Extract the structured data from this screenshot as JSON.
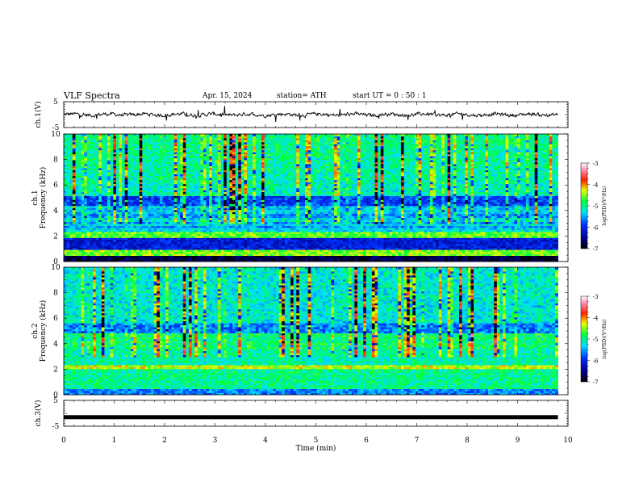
{
  "header": {
    "title": "VLF  Spectra",
    "date": "Apr. 15, 2024",
    "station": "station= ATH",
    "start_ut": "start  UT  =    0  : 50 : 1"
  },
  "chart_data": [
    {
      "type": "line",
      "ylabel": "ch.1(V)",
      "ylim": [
        -5,
        5
      ],
      "y_ticks": [
        "5",
        "-5"
      ],
      "description_series": "noisy waveform centered near 0 V, occasional spikes",
      "xlim": [
        0,
        10
      ],
      "data_end_min": 9.8
    },
    {
      "type": "heatmap",
      "ylabel": "ch.1\nFrequency  (kHz)",
      "ylim": [
        0,
        10
      ],
      "y_ticks": [
        "0",
        "2",
        "4",
        "6",
        "8",
        "10"
      ],
      "colorbar": {
        "label": "log(PSD)(V²/Hz)",
        "ticks": [
          "-3",
          "-4",
          "-5",
          "-6",
          "-7"
        ],
        "range": [
          -7,
          -3
        ]
      }
    },
    {
      "type": "heatmap",
      "ylabel": "ch.2\nFrequency  (kHz)",
      "ylim": [
        0,
        10
      ],
      "y_ticks": [
        "0",
        "2",
        "4",
        "6",
        "8",
        "10"
      ],
      "colorbar": {
        "label": "log(PSD)(V²/Hz)",
        "ticks": [
          "-3",
          "-4",
          "-5",
          "-6",
          "-7"
        ],
        "range": [
          -7,
          -3
        ]
      }
    },
    {
      "type": "line",
      "ylabel": "ch.3(V)",
      "ylim": [
        -5,
        5
      ],
      "y_ticks": [
        "5",
        "-5"
      ],
      "flat_value": -1.5,
      "xlim": [
        0,
        10
      ],
      "data_end_min": 9.8
    }
  ],
  "xaxis": {
    "label": "Time  (min)",
    "ticks": [
      "0",
      "1",
      "2",
      "3",
      "4",
      "5",
      "6",
      "7",
      "8",
      "9",
      "10"
    ],
    "range": [
      0,
      10
    ]
  }
}
